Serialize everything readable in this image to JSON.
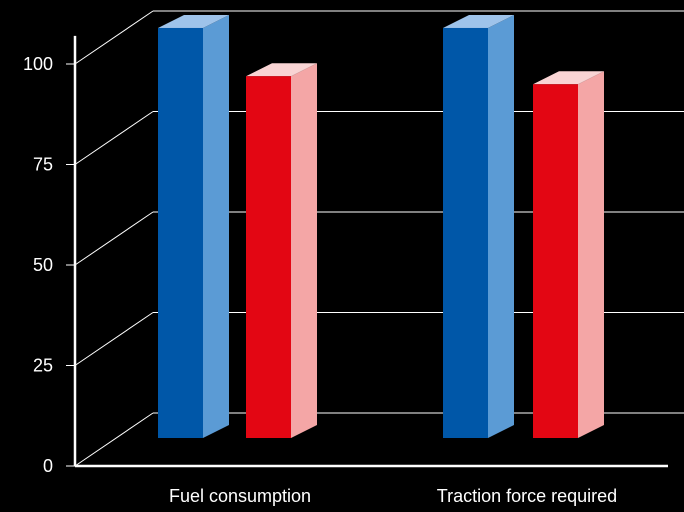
{
  "chart_data": {
    "type": "bar",
    "style": "3d",
    "categories": [
      "Fuel consumption",
      "Traction force required"
    ],
    "series": [
      {
        "values": [
          102,
          102
        ],
        "color": "#0057a8",
        "side_color": "#5b9bd5",
        "top_color": "#9ec3ea"
      },
      {
        "values": [
          90,
          88
        ],
        "color": "#e30613",
        "side_color": "#f4a6a6",
        "top_color": "#f9d4d4"
      }
    ],
    "yticks": [
      "0",
      "25",
      "50",
      "75",
      "100"
    ],
    "ylim": [
      0,
      100
    ],
    "grid": true,
    "background": "#000000",
    "axis_color": "#ffffff",
    "title": "",
    "xlabel": "",
    "ylabel": ""
  }
}
